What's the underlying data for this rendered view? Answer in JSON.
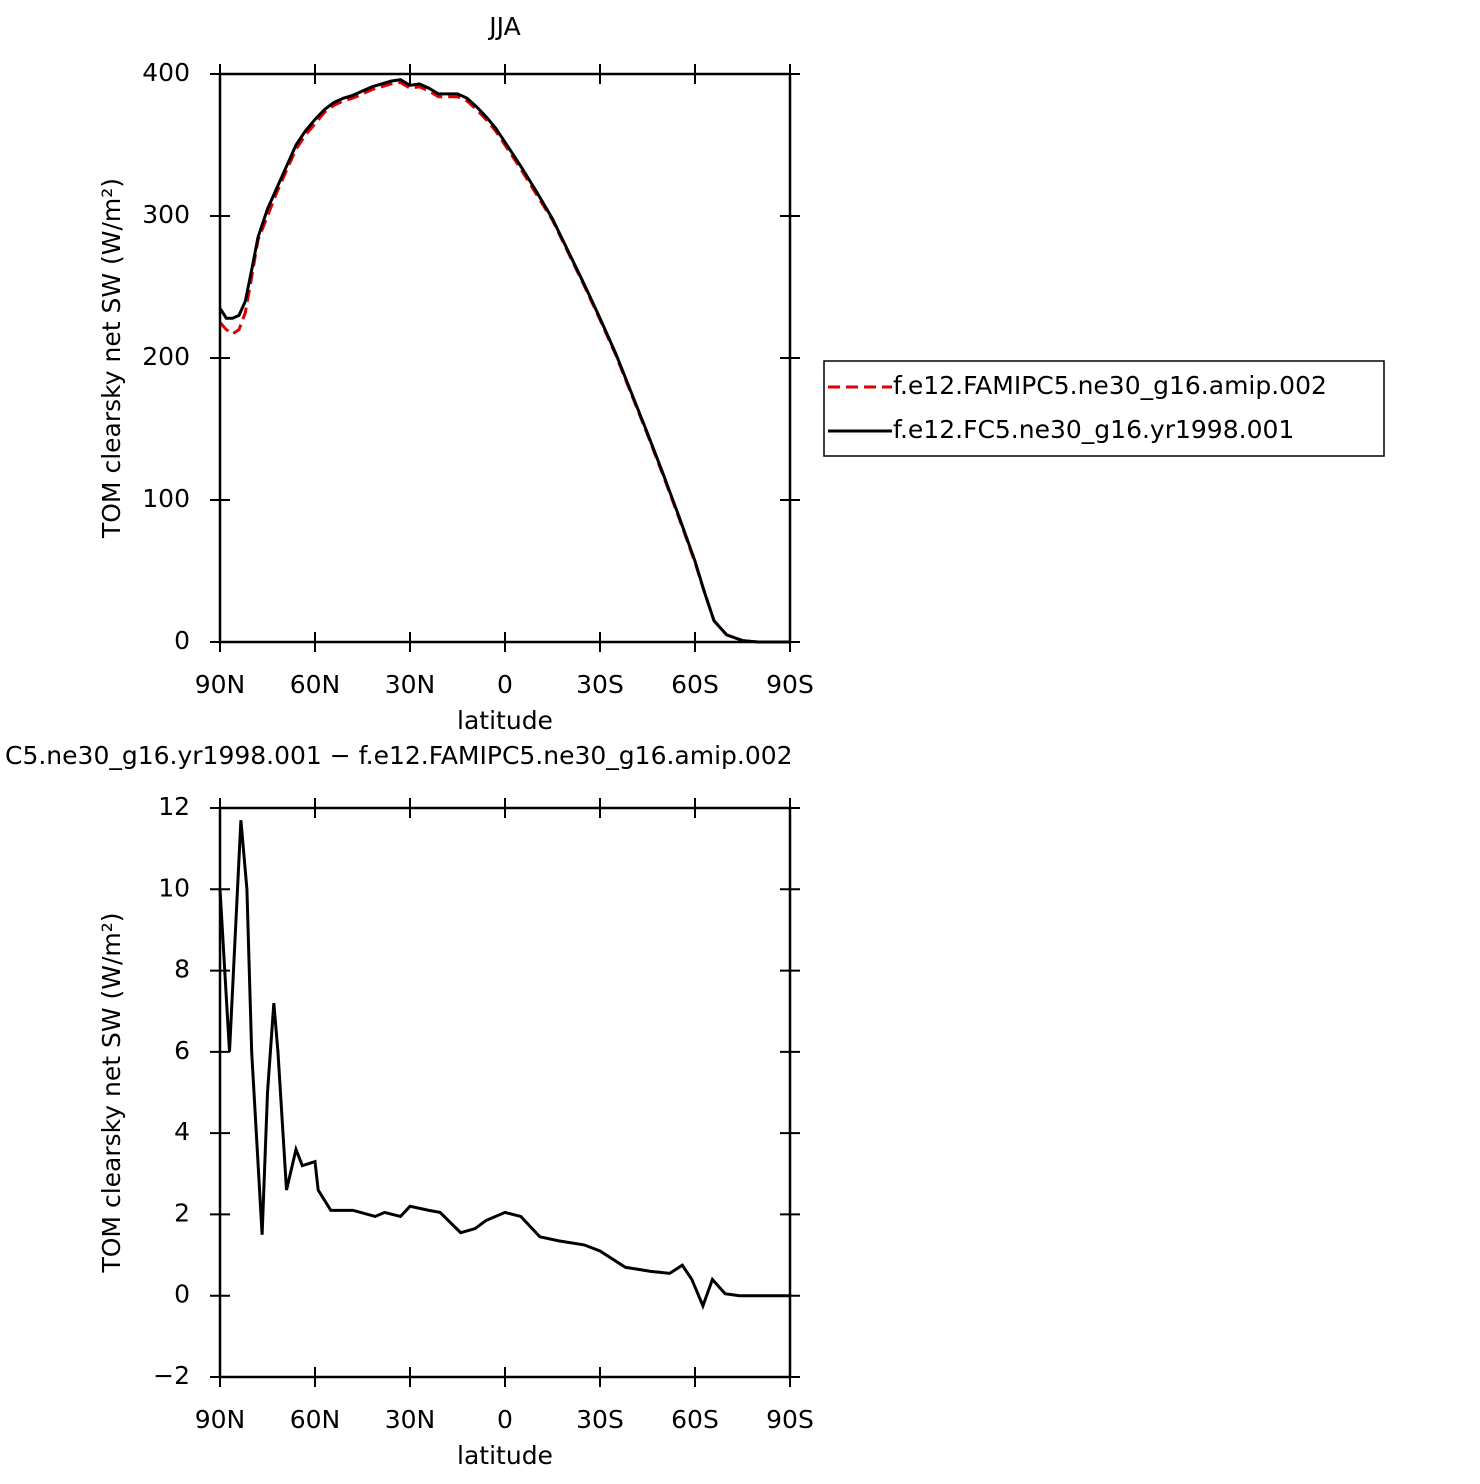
{
  "chart_data": [
    {
      "type": "line",
      "title": "JJA",
      "xlabel": "latitude",
      "ylabel": "TOM clearsky net SW (W/m²)",
      "x": [
        90,
        88,
        86,
        84,
        82,
        80,
        78,
        75,
        72,
        69,
        66,
        63,
        60,
        57,
        54,
        51,
        48,
        45,
        42,
        39,
        36,
        33,
        30,
        27,
        24,
        21,
        18,
        15,
        12,
        9,
        6,
        3,
        0,
        -5,
        -10,
        -15,
        -20,
        -25,
        -30,
        -35,
        -40,
        -45,
        -50,
        -55,
        -60,
        -63,
        -66,
        -70,
        -75,
        -80,
        -85,
        -90
      ],
      "series": [
        {
          "name": "f.e12.FAMIPC5.ne30_g16.amip.002",
          "color": "#e00000",
          "dash": true,
          "values": [
            225,
            220,
            217,
            220,
            232,
            257,
            283,
            300,
            317,
            332,
            347,
            357,
            365,
            373,
            378,
            381,
            383,
            386,
            389,
            391,
            393,
            394,
            390,
            391,
            388,
            384,
            384,
            384,
            381,
            375,
            368,
            360,
            350,
            333,
            315,
            297,
            274,
            251,
            227,
            202,
            174,
            146,
            117,
            87,
            56,
            35,
            15,
            5,
            1,
            0,
            0,
            0
          ]
        },
        {
          "name": "f.e12.FC5.ne30_g16.yr1998.001",
          "color": "#000000",
          "dash": false,
          "values": [
            235,
            228,
            228,
            230,
            240,
            262,
            285,
            305,
            320,
            335,
            350,
            360,
            368,
            375,
            380,
            383,
            385,
            388,
            391,
            393,
            395,
            396,
            392,
            393,
            390,
            386,
            386,
            386,
            383,
            377,
            370,
            362,
            352,
            335,
            317,
            298,
            275,
            252,
            228,
            203,
            175,
            147,
            118,
            88,
            57,
            35,
            15,
            5,
            1,
            0,
            0,
            0
          ]
        }
      ],
      "xlim": [
        90,
        -90
      ],
      "xticks": [
        {
          "value": 90,
          "label": "90N"
        },
        {
          "value": 60,
          "label": "60N"
        },
        {
          "value": 30,
          "label": "30N"
        },
        0,
        {
          "value": -30,
          "label": "30S"
        },
        {
          "value": -60,
          "label": "60S"
        },
        {
          "value": -90,
          "label": "90S"
        }
      ],
      "ylim": [
        0,
        400
      ],
      "yticks": [
        0,
        100,
        200,
        300,
        400
      ],
      "legend": "right"
    },
    {
      "type": "line",
      "title": "C5.ne30_g16.yr1998.001 − f.e12.FAMIPC5.ne30_g16.amip.002",
      "xlabel": "latitude",
      "ylabel": "TOM clearsky net SW (W/m²)",
      "x": [
        90,
        87,
        83.4,
        81.5,
        80,
        76.7,
        75,
        73,
        71.7,
        69,
        66,
        64,
        60,
        59,
        55,
        48,
        41,
        38,
        33,
        30,
        24,
        20.5,
        14,
        9.5,
        6,
        0,
        -5,
        -11,
        -17,
        -25,
        -30,
        -38,
        -46,
        -52,
        -56,
        -59,
        -62.5,
        -65.5,
        -69.5,
        -74,
        -90
      ],
      "values": [
        10,
        6,
        11.7,
        10,
        6,
        1.5,
        5,
        7.2,
        6,
        2.6,
        3.6,
        3.2,
        3.3,
        2.6,
        2.1,
        2.1,
        1.95,
        2.05,
        1.95,
        2.2,
        2.1,
        2.05,
        1.55,
        1.65,
        1.85,
        2.05,
        1.95,
        1.45,
        1.35,
        1.25,
        1.1,
        0.7,
        0.6,
        0.55,
        0.75,
        0.4,
        -0.25,
        0.4,
        0.05,
        0,
        0
      ],
      "color": "#000000",
      "xlim": [
        90,
        -90
      ],
      "xticks": [
        {
          "value": 90,
          "label": "90N"
        },
        {
          "value": 60,
          "label": "60N"
        },
        {
          "value": 30,
          "label": "30N"
        },
        0,
        {
          "value": -30,
          "label": "30S"
        },
        {
          "value": -60,
          "label": "60S"
        },
        {
          "value": -90,
          "label": "90S"
        }
      ],
      "ylim": [
        -2,
        12
      ],
      "yticks": [
        {
          "value": -2,
          "label": "−2"
        },
        0,
        2,
        4,
        6,
        8,
        10,
        12
      ]
    }
  ]
}
